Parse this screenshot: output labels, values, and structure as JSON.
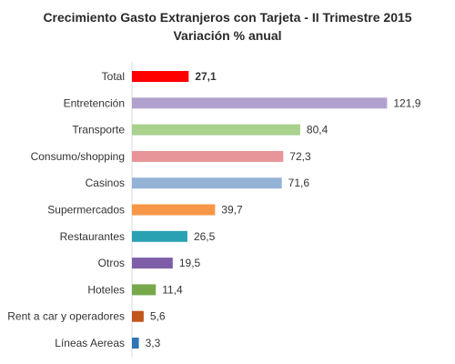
{
  "chart_data": {
    "type": "bar",
    "orientation": "horizontal",
    "title": "Crecimiento Gasto Extranjeros con Tarjeta -  II Trimestre 2015",
    "subtitle": "Variación % anual",
    "categories": [
      "Total",
      "Entretención",
      "Transporte",
      "Consumo/shopping",
      "Casinos",
      "Supermercados",
      "Restaurantes",
      "Otros",
      "Hoteles",
      "Rent a car y operadores",
      "Líneas Aereas"
    ],
    "values": [
      27.1,
      121.9,
      80.4,
      72.3,
      71.6,
      39.7,
      26.5,
      19.5,
      11.4,
      5.6,
      3.3
    ],
    "value_labels": [
      "27,1",
      "121,9",
      "80,4",
      "72,3",
      "71,6",
      "39,7",
      "26,5",
      "19,5",
      "11,4",
      "5,6",
      "3,3"
    ],
    "colors": [
      "#ff0000",
      "#b2a1cf",
      "#a9d18e",
      "#e8959a",
      "#95b3d7",
      "#f79646",
      "#2aa0b3",
      "#7f5ea8",
      "#77a94b",
      "#c0561b",
      "#2e75b6"
    ],
    "highlight_index": 0,
    "xlim": [
      0,
      125
    ],
    "grid": false,
    "legend": "none"
  }
}
